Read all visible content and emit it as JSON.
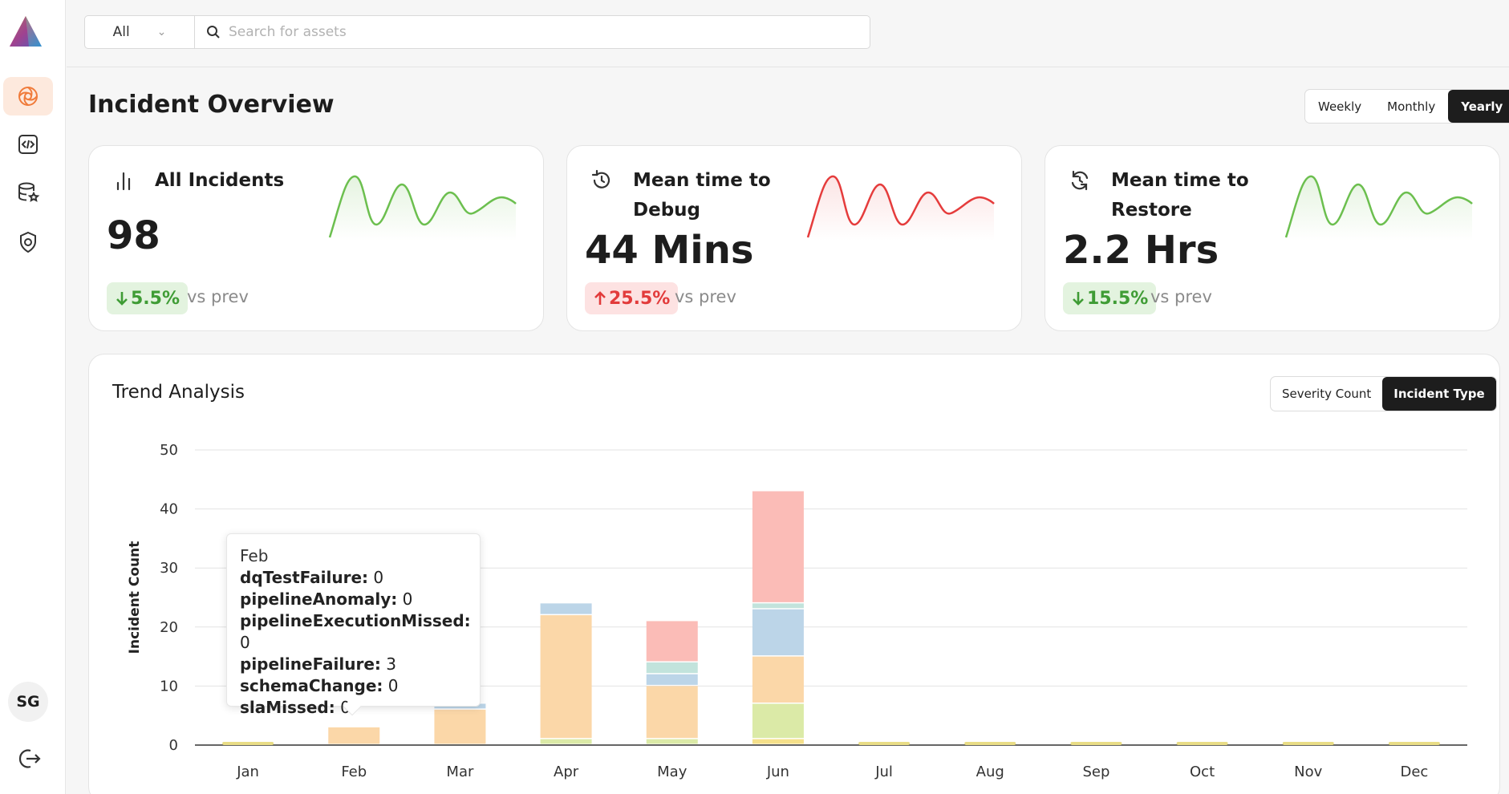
{
  "colors": {
    "accent": "#f07b3a",
    "dark": "#1d1d1d",
    "good": "#3f9c35",
    "bad": "#e23b3b",
    "spark_green": "#6cbf4f",
    "spark_red": "#e53c3c"
  },
  "sidebar": {
    "items": [
      {
        "icon": "incidents-icon",
        "active": true
      },
      {
        "icon": "code-icon",
        "active": false
      },
      {
        "icon": "database-star-icon",
        "active": false
      },
      {
        "icon": "shield-settings-icon",
        "active": false
      }
    ],
    "avatar": "SG",
    "logout_icon": "logout-icon"
  },
  "search": {
    "scope": "All",
    "placeholder": "Search for assets"
  },
  "header": {
    "title": "Incident Overview",
    "periods": [
      "Weekly",
      "Monthly",
      "Yearly"
    ],
    "selected_period": "Yearly"
  },
  "cards": [
    {
      "icon": "bar-chart-icon",
      "label": "All Incidents",
      "value": "98",
      "delta": "5.5%",
      "direction": "down",
      "trend": "good",
      "vs": "vs prev"
    },
    {
      "icon": "history-icon",
      "label": "Mean time to Debug",
      "value": "44 Mins",
      "delta": "25.5%",
      "direction": "up",
      "trend": "bad",
      "vs": "vs prev"
    },
    {
      "icon": "refresh-icon",
      "label": "Mean time to Restore",
      "value": "2.2 Hrs",
      "delta": "15.5%",
      "direction": "down",
      "trend": "good",
      "vs": "vs prev"
    }
  ],
  "trend": {
    "title": "Trend Analysis",
    "toggles": [
      "Severity Count",
      "Incident Type"
    ],
    "selected_toggle": "Incident Type"
  },
  "chart_data": {
    "type": "bar",
    "stacked": true,
    "ylabel": "Incident Count",
    "xlabel": "",
    "ylim": [
      0,
      50
    ],
    "yticks": [
      0,
      10,
      20,
      30,
      40,
      50
    ],
    "grid": true,
    "categories": [
      "Jan",
      "Feb",
      "Mar",
      "Apr",
      "May",
      "Jun",
      "Jul",
      "Aug",
      "Sep",
      "Oct",
      "Nov",
      "Dec"
    ],
    "series": [
      {
        "name": "dqTestFailure",
        "color": "#f5e08a",
        "values": [
          0,
          0,
          0,
          0,
          0,
          1,
          0,
          0,
          0,
          0,
          0,
          0
        ]
      },
      {
        "name": "schemaChange",
        "color": "#dbeaa7",
        "values": [
          0,
          0,
          0,
          1,
          1,
          6,
          0,
          0,
          0,
          0,
          0,
          0
        ]
      },
      {
        "name": "pipelineFailure",
        "color": "#fbd7a8",
        "values": [
          0,
          3,
          6,
          21,
          9,
          8,
          0,
          0,
          0,
          0,
          0,
          0
        ]
      },
      {
        "name": "pipelineAnomaly",
        "color": "#bcd5e8",
        "values": [
          0,
          0,
          1,
          2,
          2,
          8,
          0,
          0,
          0,
          0,
          0,
          0
        ]
      },
      {
        "name": "pipelineExecutionMissed",
        "color": "#c2e3dc",
        "values": [
          0,
          0,
          0,
          0,
          2,
          1,
          0,
          0,
          0,
          0,
          0,
          0
        ]
      },
      {
        "name": "slaMissed",
        "color": "#fbbcb7",
        "values": [
          0,
          0,
          0,
          0,
          7,
          19,
          0,
          0,
          0,
          0,
          0,
          0
        ]
      }
    ]
  },
  "tooltip": {
    "title": "Feb",
    "rows": [
      {
        "key": "dqTestFailure:",
        "value": "0"
      },
      {
        "key": "pipelineAnomaly:",
        "value": "0"
      },
      {
        "key": "pipelineExecutionMissed:",
        "value": "0"
      },
      {
        "key": "pipelineFailure:",
        "value": "3"
      },
      {
        "key": "schemaChange:",
        "value": "0"
      },
      {
        "key": "slaMissed:",
        "value": "0"
      }
    ]
  }
}
